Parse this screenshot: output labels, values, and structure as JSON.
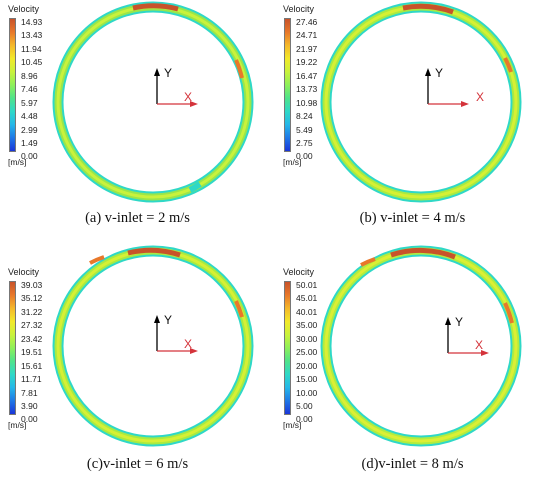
{
  "palette": [
    "#1a35d8",
    "#1f78e6",
    "#25b7e8",
    "#2fd8c7",
    "#4fe38a",
    "#8ef05a",
    "#c9f23c",
    "#f2e92a",
    "#f4b82a",
    "#e8782a",
    "#c8532a"
  ],
  "panels": [
    {
      "legend_title": "Velocity",
      "ticks": [
        "14.93",
        "13.43",
        "11.94",
        "10.45",
        "8.96",
        "7.46",
        "5.97",
        "4.48",
        "2.99",
        "1.49",
        "0.00"
      ],
      "unit": "[m/s]",
      "caption": "(a) v-inlet = 2 m/s",
      "axis_y": "Y",
      "axis_x": "X"
    },
    {
      "legend_title": "Velocity",
      "ticks": [
        "27.46",
        "24.71",
        "21.97",
        "19.22",
        "16.47",
        "13.73",
        "10.98",
        "8.24",
        "5.49",
        "2.75",
        "0.00"
      ],
      "unit": "[m/s]",
      "caption": "(b)  v-inlet = 4 m/s",
      "axis_y": "Y",
      "axis_x": "X"
    },
    {
      "legend_title": "Velocity",
      "ticks": [
        "39.03",
        "35.12",
        "31.22",
        "27.32",
        "23.42",
        "19.51",
        "15.61",
        "11.71",
        "7.81",
        "3.90",
        "0.00"
      ],
      "unit": "[m/s]",
      "caption": "(c)v-inlet = 6 m/s",
      "axis_y": "Y",
      "axis_x": "X"
    },
    {
      "legend_title": "Velocity",
      "ticks": [
        "50.01",
        "45.01",
        "40.01",
        "35.00",
        "30.00",
        "25.00",
        "20.00",
        "15.00",
        "10.00",
        "5.00",
        "0.00"
      ],
      "unit": "[m/s]",
      "caption": "(d)v-inlet = 8 m/s",
      "axis_y": "Y",
      "axis_x": "X"
    }
  ]
}
